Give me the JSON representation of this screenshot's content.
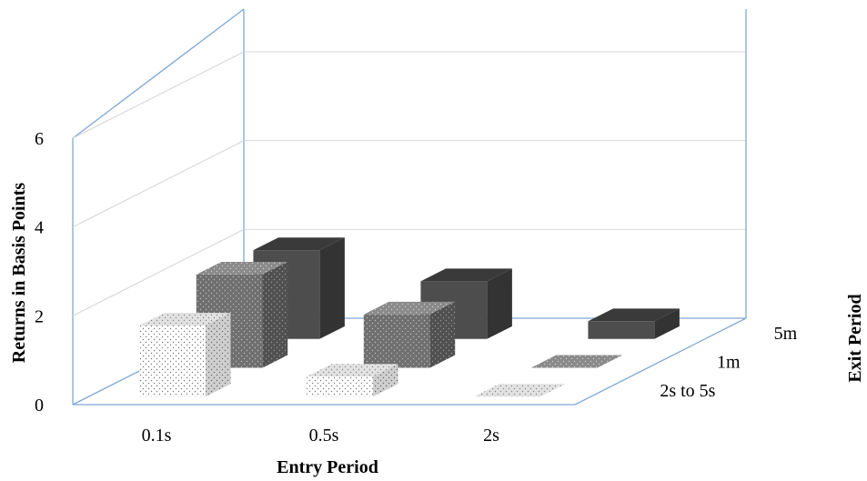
{
  "chart_data": {
    "type": "bar3d",
    "title": "",
    "xlabel": "Entry Period",
    "ylabel": "Returns in Basis Points",
    "zlabel": "Exit Period",
    "categories": [
      "0.1s",
      "0.5s",
      "2s"
    ],
    "ylim": [
      0,
      6
    ],
    "yticks": [
      "0",
      "2",
      "4",
      "6"
    ],
    "series": [
      {
        "name": "2s to 5s",
        "values": [
          1.6,
          0.45,
          0.0
        ],
        "color": "#f3f3f3",
        "pattern": "dots-light"
      },
      {
        "name": "1m",
        "values": [
          2.1,
          1.2,
          0.0
        ],
        "color": "#767676",
        "pattern": "dots-dark"
      },
      {
        "name": "5m",
        "values": [
          2.0,
          1.3,
          0.4
        ],
        "color": "#4a4a4a",
        "pattern": "solid"
      }
    ]
  }
}
